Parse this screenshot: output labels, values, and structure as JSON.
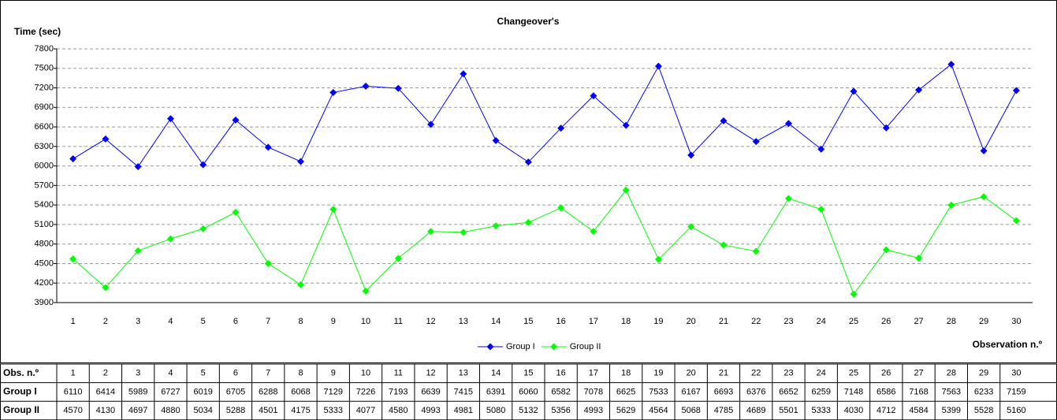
{
  "chart_data": {
    "type": "line",
    "title": "Changeover's",
    "y_label": "Time (sec)",
    "x_label": "Observation n.º",
    "categories": [
      "1",
      "2",
      "3",
      "4",
      "5",
      "6",
      "7",
      "8",
      "9",
      "10",
      "11",
      "12",
      "13",
      "14",
      "15",
      "16",
      "17",
      "18",
      "19",
      "20",
      "21",
      "22",
      "23",
      "24",
      "25",
      "26",
      "27",
      "28",
      "29",
      "30"
    ],
    "series": [
      {
        "name": "Group I",
        "color": "#0000ff",
        "values": [
          6110,
          6414,
          5989,
          6727,
          6019,
          6705,
          6288,
          6068,
          7129,
          7226,
          7193,
          6639,
          7415,
          6391,
          6060,
          6582,
          7078,
          6625,
          7533,
          6167,
          6693,
          6376,
          6652,
          6259,
          7148,
          6586,
          7168,
          7563,
          6233,
          7159
        ]
      },
      {
        "name": "Group II",
        "color": "#00ff00",
        "values": [
          4570,
          4130,
          4697,
          4880,
          5034,
          5288,
          4501,
          4175,
          5333,
          4077,
          4580,
          4993,
          4981,
          5080,
          5132,
          5356,
          4993,
          5629,
          4564,
          5068,
          4785,
          4689,
          5501,
          5333,
          4030,
          4712,
          4584,
          5399,
          5528,
          5160
        ]
      }
    ],
    "ylim": [
      3900,
      7800
    ],
    "yticks": [
      3900,
      4200,
      4500,
      4800,
      5100,
      5400,
      5700,
      6000,
      6300,
      6600,
      6900,
      7200,
      7500,
      7800
    ],
    "grid": true
  },
  "data_table": {
    "header": "Obs. n.º"
  }
}
